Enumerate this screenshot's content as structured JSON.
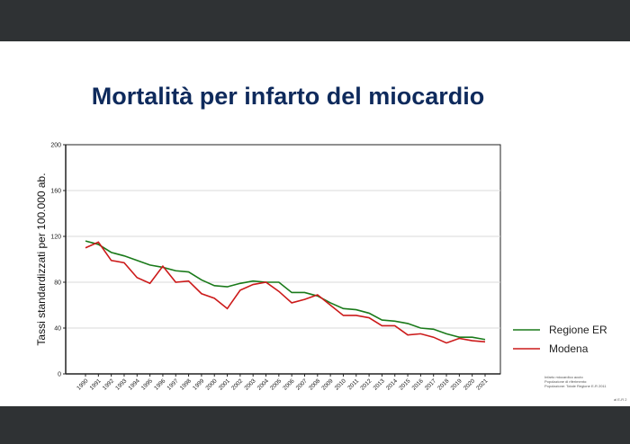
{
  "slide": {
    "title": "Mortalità per infarto del miocardio"
  },
  "notes": [
    "Infarto miocardico acuto",
    "Popolazione di riferimento:",
    "Popolazione: Totale Regione E-R 2011"
  ],
  "corner_note": "al E-R 2",
  "chart_data": {
    "type": "line",
    "title": "",
    "xlabel": "",
    "ylabel": "Tassi standardizzati per 100.000 ab.",
    "ylim": [
      0,
      200
    ],
    "yticks": [
      0,
      40,
      80,
      120,
      160,
      200
    ],
    "grid": true,
    "legend": "right",
    "x": [
      "1990",
      "1991",
      "1992",
      "1993",
      "1994",
      "1995",
      "1996",
      "1997",
      "1998",
      "1999",
      "2000",
      "2001",
      "2002",
      "2003",
      "2004",
      "2005",
      "2006",
      "2007",
      "2008",
      "2009",
      "2010",
      "2011",
      "2012",
      "2013",
      "2014",
      "2015",
      "2016",
      "2017",
      "2018",
      "2019",
      "2020",
      "2021"
    ],
    "series": [
      {
        "name": "Regione ER",
        "color": "#1a7a1a",
        "values": [
          116,
          113,
          106,
          103,
          99,
          95,
          93,
          90,
          89,
          82,
          77,
          76,
          79,
          81,
          80,
          80,
          71,
          71,
          68,
          62,
          57,
          56,
          53,
          47,
          46,
          44,
          40,
          39,
          35,
          32,
          32,
          30
        ]
      },
      {
        "name": "Modena",
        "color": "#cc1a1a",
        "values": [
          110,
          115,
          99,
          97,
          84,
          79,
          94,
          80,
          81,
          70,
          66,
          57,
          73,
          78,
          80,
          72,
          62,
          65,
          69,
          60,
          51,
          51,
          49,
          42,
          42,
          34,
          35,
          32,
          27,
          31,
          29,
          28
        ]
      }
    ]
  }
}
